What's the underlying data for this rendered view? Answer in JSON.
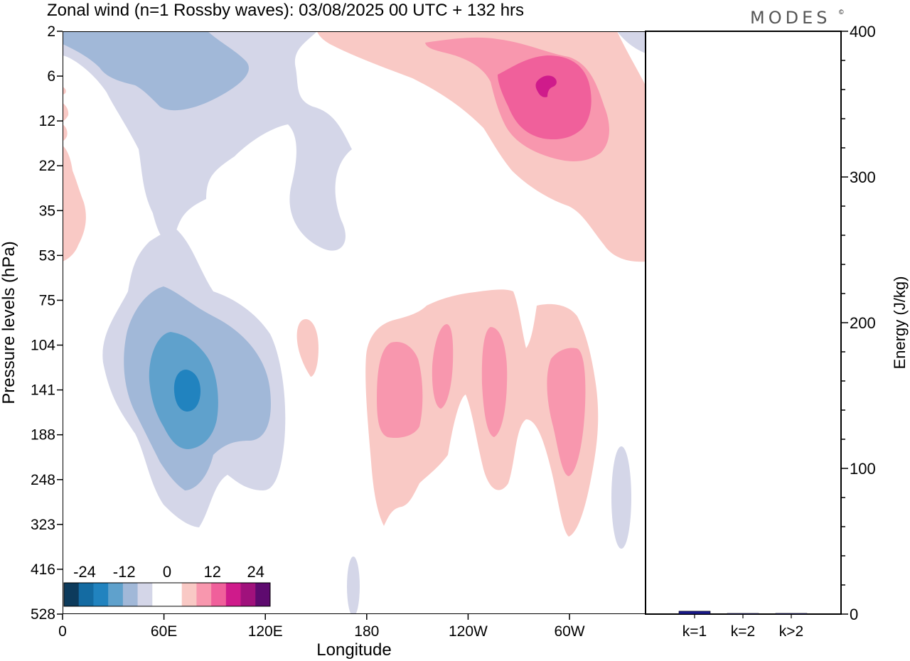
{
  "chart_data": [
    {
      "type": "contour",
      "title": "Zonal wind (n=1 Rossby waves):  03/08/2025  00 UTC  + 132 hrs",
      "brand": "MODES",
      "brand_mark": "©",
      "xlabel": "Longitude",
      "ylabel": "Pressure levels (hPa)",
      "x_ticks": [
        "0",
        "60E",
        "120E",
        "180",
        "120W",
        "60W"
      ],
      "x_tick_values": [
        0,
        60,
        120,
        180,
        240,
        300
      ],
      "xlim": [
        0,
        345
      ],
      "y_ticks": [
        "2",
        "6",
        "12",
        "22",
        "35",
        "53",
        "75",
        "104",
        "141",
        "188",
        "248",
        "323",
        "416",
        "528"
      ],
      "colorbar": {
        "labels": [
          "-24",
          "-12",
          "0",
          "12",
          "24"
        ],
        "levels": [
          -28,
          -24,
          -20,
          -16,
          -12,
          -8,
          -4,
          4,
          8,
          12,
          16,
          20,
          24,
          28
        ],
        "colors": [
          "#0d3b5c",
          "#146ba2",
          "#2183bf",
          "#5fa1cc",
          "#a1b8d8",
          "#d4d6e8",
          "#ffffff",
          "#ffffff",
          "#f9c9c5",
          "#f897ae",
          "#f0609b",
          "#cf1b8b",
          "#a0117c",
          "#5e0a6f"
        ]
      },
      "features": [
        {
          "name": "negative-upper-west",
          "sign": "negative",
          "level": -8,
          "lon_center": 60,
          "pressure_range": [
            2,
            53
          ]
        },
        {
          "name": "negative-upper-core",
          "sign": "negative",
          "level": -12,
          "lon_center": 50,
          "pressure_range": [
            2,
            12
          ]
        },
        {
          "name": "negative-lower-core",
          "sign": "negative",
          "min_value": -24,
          "lon_center": 75,
          "pressure_center": 141
        },
        {
          "name": "positive-upper-east",
          "sign": "positive",
          "max_value": 20,
          "lon_center": 290,
          "pressure_center": 8
        },
        {
          "name": "positive-lower-band",
          "sign": "positive",
          "max_value": 12,
          "lon_range": [
            180,
            315
          ],
          "pressure_range": [
            75,
            323
          ]
        }
      ]
    },
    {
      "type": "bar",
      "categories": [
        "k=1",
        "k=2",
        "k>2"
      ],
      "values": [
        2,
        0.3,
        0.5
      ],
      "colors": [
        "#1a1a8c",
        "#1a1a8c",
        "#1a1a8c"
      ],
      "ylabel": "Energy (J/kg)",
      "y_ticks": [
        "0",
        "100",
        "200",
        "300",
        "400"
      ],
      "ylim": [
        0,
        400
      ]
    }
  ]
}
